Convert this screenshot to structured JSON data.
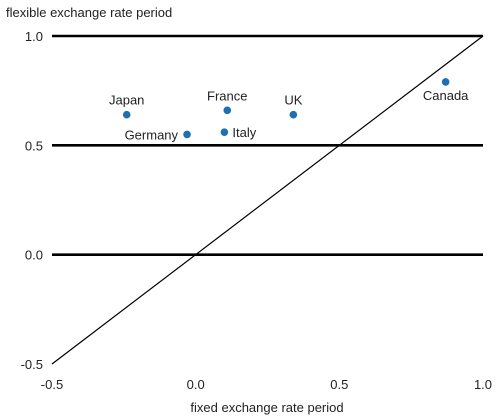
{
  "chart_data": {
    "type": "scatter",
    "title": "",
    "xlabel": "fixed exchange rate period",
    "ylabel": "flexible exchange rate period",
    "xlim": [
      -0.5,
      1.0
    ],
    "ylim": [
      -0.5,
      1.0
    ],
    "xticks": [
      "-0.5",
      "0.0",
      "0.5",
      "1.0"
    ],
    "yticks": [
      "1.0",
      "0.5",
      "0.0",
      "-0.5"
    ],
    "x_tick_values": [
      -0.5,
      0.0,
      0.5,
      1.0
    ],
    "y_tick_values": [
      1.0,
      0.5,
      0.0,
      -0.5
    ],
    "horizontal_rules": [
      1.0,
      0.5,
      0.0
    ],
    "reference_line": "45-degree",
    "grid": false,
    "legend": "none",
    "point_color": "#1f6fb5",
    "points": [
      {
        "label": "Japan",
        "x": -0.24,
        "y": 0.64,
        "label_anchor": "middle",
        "label_pos": "above"
      },
      {
        "label": "Germany",
        "x": -0.03,
        "y": 0.55,
        "label_anchor": "end",
        "label_pos": "left"
      },
      {
        "label": "France",
        "x": 0.11,
        "y": 0.66,
        "label_anchor": "middle",
        "label_pos": "above"
      },
      {
        "label": "Italy",
        "x": 0.1,
        "y": 0.56,
        "label_anchor": "start",
        "label_pos": "right"
      },
      {
        "label": "UK",
        "x": 0.34,
        "y": 0.64,
        "label_anchor": "middle",
        "label_pos": "above"
      },
      {
        "label": "Canada",
        "x": 0.87,
        "y": 0.79,
        "label_anchor": "middle",
        "label_pos": "below"
      }
    ]
  }
}
